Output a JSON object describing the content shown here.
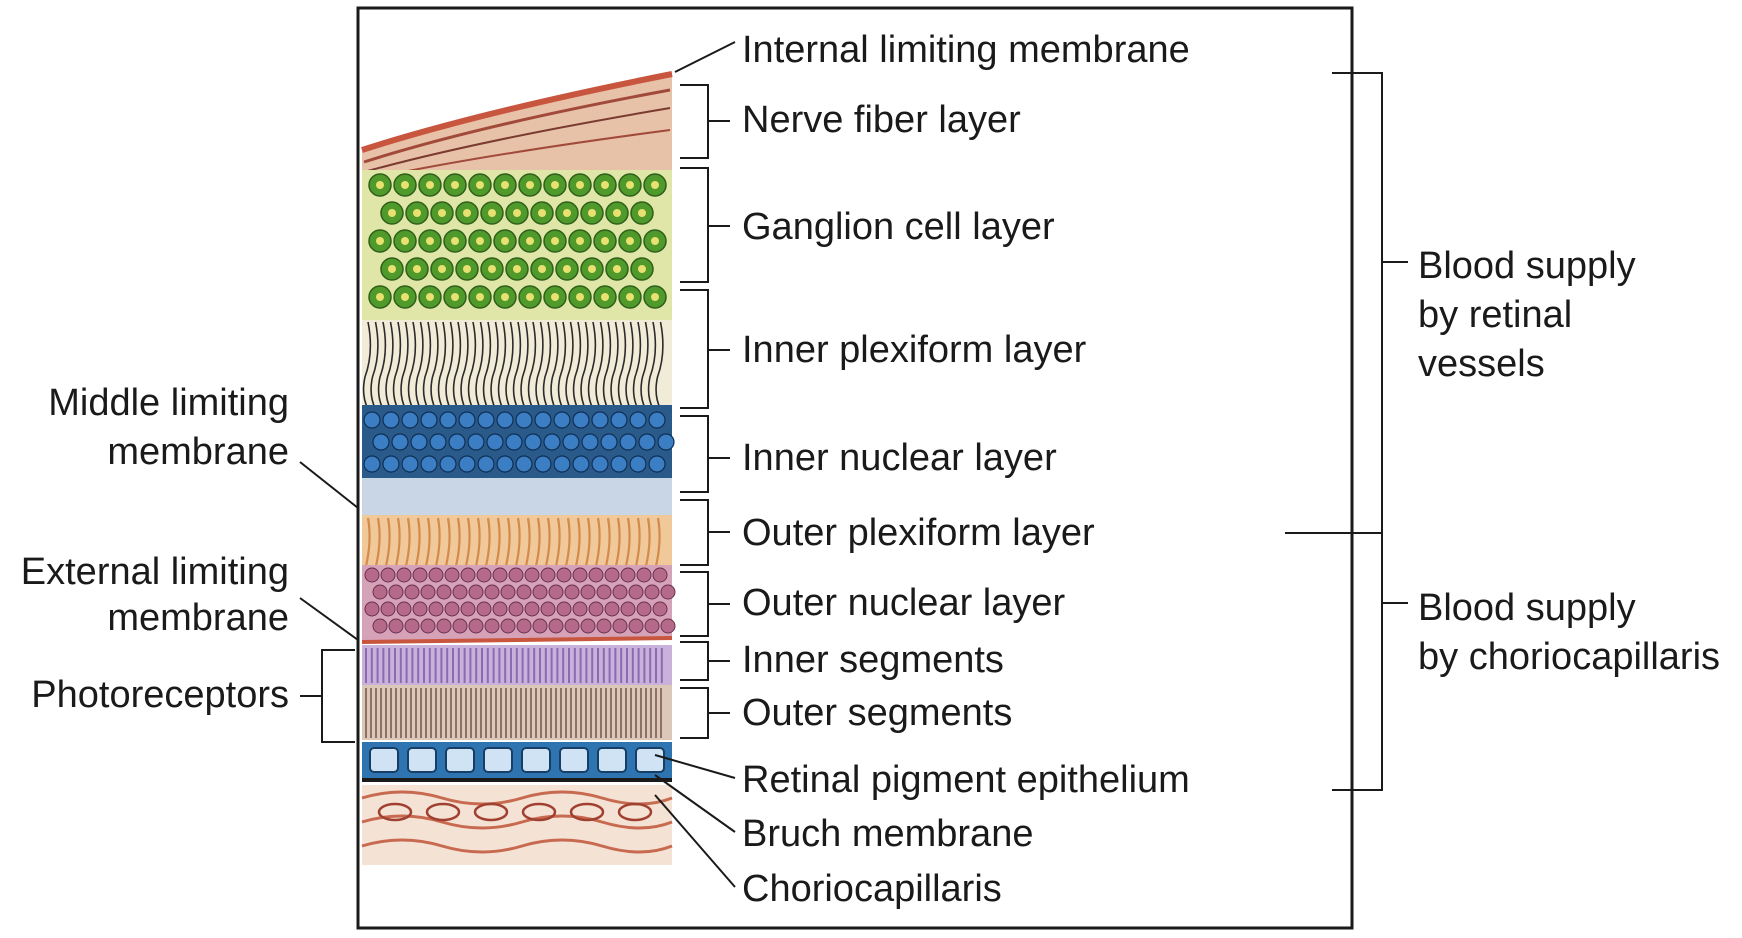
{
  "diagram": {
    "layer_labels": [
      "Internal limiting membrane",
      "Nerve fiber layer",
      "Ganglion cell layer",
      "Inner plexiform layer",
      "Inner nuclear layer",
      "Outer plexiform layer",
      "Outer nuclear layer",
      "Inner segments",
      "Outer segments",
      "Retinal pigment epithelium",
      "Bruch membrane",
      "Choriocapillaris"
    ],
    "left_labels": {
      "middle_limiting": [
        "Middle limiting",
        "membrane"
      ],
      "external_limiting": [
        "External limiting",
        "membrane"
      ],
      "photoreceptors": "Photoreceptors"
    },
    "blood_supply": {
      "retinal": [
        "Blood supply",
        "by retinal",
        "vessels"
      ],
      "choriocapillaris": [
        "Blood supply",
        "by choriocapillaris"
      ]
    },
    "colors": {
      "internal_membrane": "#c8553d",
      "nerve_fiber": "#a24a3a",
      "ganglion": "#4f9a2a",
      "inner_plexiform": "#2b2b2b",
      "inner_nuclear": "#1f5f99",
      "outer_plexiform": "#d38a4a",
      "outer_nuclear": "#b56a8a",
      "inner_segments": "#8a6ab0",
      "outer_segments": "#7a5a50",
      "rpe": "#2d74b0",
      "choroid": "#c86a50"
    }
  }
}
